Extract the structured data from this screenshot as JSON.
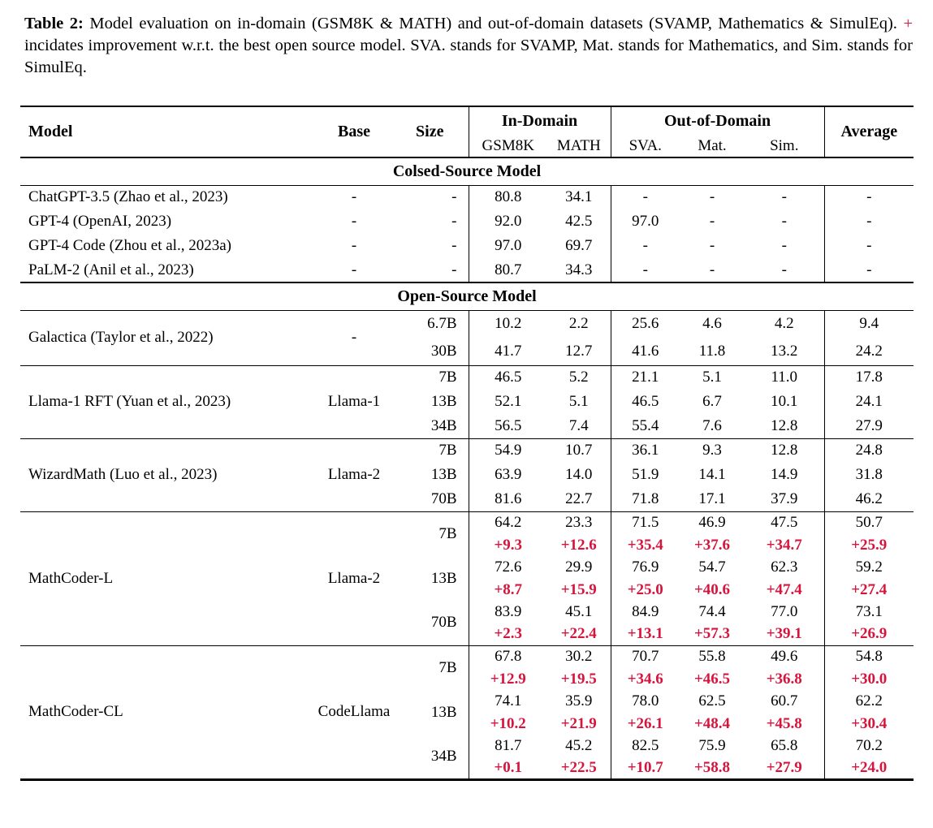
{
  "colors": {
    "improvement": "#d6143c",
    "text": "#000000",
    "background": "#ffffff"
  },
  "caption": {
    "label": "Table 2:",
    "text_before_plus": "Model evaluation on in-domain (GSM8K & MATH) and out-of-domain datasets (SVAMP, Mathematics & SimulEq). ",
    "plus": "+",
    "text_after_plus": " incidates improvement w.r.t. the best open source model. SVA. stands for SVAMP, Mat. stands for Mathematics, and Sim. stands for SimulEq."
  },
  "table": {
    "header": {
      "model": "Model",
      "base": "Base",
      "size": "Size",
      "in_domain": "In-Domain",
      "out_of_domain": "Out-of-Domain",
      "average": "Average",
      "sub_columns": [
        "GSM8K",
        "MATH",
        "SVA.",
        "Mat.",
        "Sim."
      ]
    },
    "sections": [
      {
        "title": "Colsed-Source Model",
        "groups": [
          {
            "model": "ChatGPT-3.5 (Zhao et al., 2023)",
            "base": "-",
            "rows": [
              {
                "size": "-",
                "values": [
                  "80.8",
                  "34.1",
                  "-",
                  "-",
                  "-",
                  "-"
                ]
              }
            ]
          },
          {
            "model": "GPT-4 (OpenAI, 2023)",
            "base": "-",
            "rows": [
              {
                "size": "-",
                "values": [
                  "92.0",
                  "42.5",
                  "97.0",
                  "-",
                  "-",
                  "-"
                ]
              }
            ]
          },
          {
            "model": "GPT-4 Code (Zhou et al., 2023a)",
            "base": "-",
            "rows": [
              {
                "size": "-",
                "values": [
                  "97.0",
                  "69.7",
                  "-",
                  "-",
                  "-",
                  "-"
                ]
              }
            ]
          },
          {
            "model": "PaLM-2 (Anil et al., 2023)",
            "base": "-",
            "rows": [
              {
                "size": "-",
                "values": [
                  "80.7",
                  "34.3",
                  "-",
                  "-",
                  "-",
                  "-"
                ]
              }
            ]
          }
        ]
      },
      {
        "title": "Open-Source Model",
        "groups": [
          {
            "model": "Galactica (Taylor et al., 2022)",
            "base": "-",
            "rows": [
              {
                "size": "6.7B",
                "values": [
                  "10.2",
                  "2.2",
                  "25.6",
                  "4.6",
                  "4.2",
                  "9.4"
                ]
              },
              {
                "size": "30B",
                "values": [
                  "41.7",
                  "12.7",
                  "41.6",
                  "11.8",
                  "13.2",
                  "24.2"
                ]
              }
            ]
          },
          {
            "model": "Llama-1 RFT (Yuan et al., 2023)",
            "base": "Llama-1",
            "rows": [
              {
                "size": "7B",
                "values": [
                  "46.5",
                  "5.2",
                  "21.1",
                  "5.1",
                  "11.0",
                  "17.8"
                ]
              },
              {
                "size": "13B",
                "values": [
                  "52.1",
                  "5.1",
                  "46.5",
                  "6.7",
                  "10.1",
                  "24.1"
                ]
              },
              {
                "size": "34B",
                "values": [
                  "56.5",
                  "7.4",
                  "55.4",
                  "7.6",
                  "12.8",
                  "27.9"
                ]
              }
            ]
          },
          {
            "model": "WizardMath (Luo et al., 2023)",
            "base": "Llama-2",
            "rows": [
              {
                "size": "7B",
                "values": [
                  "54.9",
                  "10.7",
                  "36.1",
                  "9.3",
                  "12.8",
                  "24.8"
                ]
              },
              {
                "size": "13B",
                "values": [
                  "63.9",
                  "14.0",
                  "51.9",
                  "14.1",
                  "14.9",
                  "31.8"
                ]
              },
              {
                "size": "70B",
                "values": [
                  "81.6",
                  "22.7",
                  "71.8",
                  "17.1",
                  "37.9",
                  "46.2"
                ]
              }
            ]
          },
          {
            "model": "MathCoder-L",
            "base": "Llama-2",
            "rows": [
              {
                "size": "7B",
                "values": [
                  "64.2",
                  "23.3",
                  "71.5",
                  "46.9",
                  "47.5",
                  "50.7"
                ],
                "improvements": [
                  "+9.3",
                  "+12.6",
                  "+35.4",
                  "+37.6",
                  "+34.7",
                  "+25.9"
                ]
              },
              {
                "size": "13B",
                "values": [
                  "72.6",
                  "29.9",
                  "76.9",
                  "54.7",
                  "62.3",
                  "59.2"
                ],
                "improvements": [
                  "+8.7",
                  "+15.9",
                  "+25.0",
                  "+40.6",
                  "+47.4",
                  "+27.4"
                ]
              },
              {
                "size": "70B",
                "values": [
                  "83.9",
                  "45.1",
                  "84.9",
                  "74.4",
                  "77.0",
                  "73.1"
                ],
                "improvements": [
                  "+2.3",
                  "+22.4",
                  "+13.1",
                  "+57.3",
                  "+39.1",
                  "+26.9"
                ]
              }
            ]
          },
          {
            "model": "MathCoder-CL",
            "base": "CodeLlama",
            "rows": [
              {
                "size": "7B",
                "values": [
                  "67.8",
                  "30.2",
                  "70.7",
                  "55.8",
                  "49.6",
                  "54.8"
                ],
                "improvements": [
                  "+12.9",
                  "+19.5",
                  "+34.6",
                  "+46.5",
                  "+36.8",
                  "+30.0"
                ]
              },
              {
                "size": "13B",
                "values": [
                  "74.1",
                  "35.9",
                  "78.0",
                  "62.5",
                  "60.7",
                  "62.2"
                ],
                "improvements": [
                  "+10.2",
                  "+21.9",
                  "+26.1",
                  "+48.4",
                  "+45.8",
                  "+30.4"
                ]
              },
              {
                "size": "34B",
                "values": [
                  "81.7",
                  "45.2",
                  "82.5",
                  "75.9",
                  "65.8",
                  "70.2"
                ],
                "improvements": [
                  "+0.1",
                  "+22.5",
                  "+10.7",
                  "+58.8",
                  "+27.9",
                  "+24.0"
                ]
              }
            ]
          }
        ]
      }
    ]
  }
}
